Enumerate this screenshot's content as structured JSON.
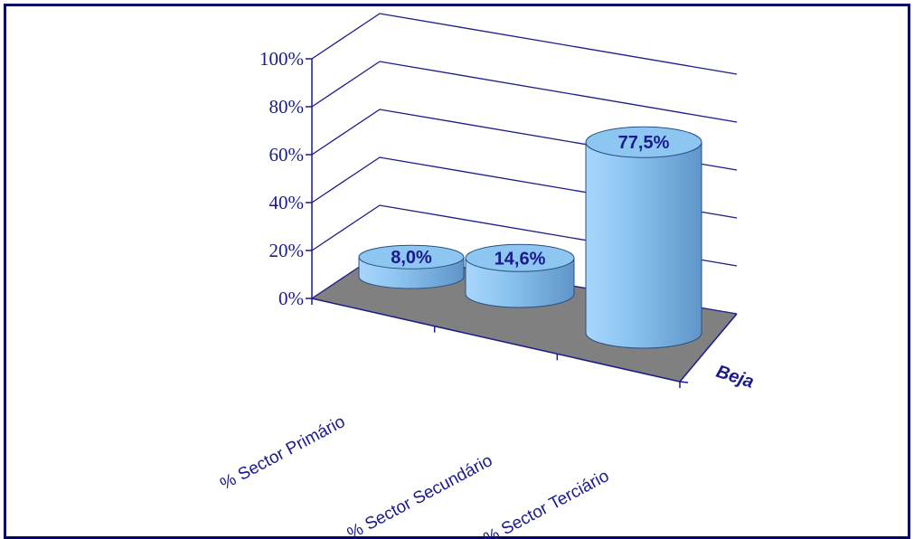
{
  "chart_data": {
    "type": "bar",
    "style": "3d-cylinder",
    "categories": [
      "% Sector Primário",
      "% Sector Secundário",
      "% Sector Terciário"
    ],
    "series": [
      {
        "name": "Beja",
        "values": [
          8.0,
          14.6,
          77.5
        ],
        "labels": [
          "8,0%",
          "14,6%",
          "77,5%"
        ]
      }
    ],
    "y_ticks": [
      "0%",
      "20%",
      "40%",
      "60%",
      "80%",
      "100%"
    ],
    "ylim": [
      0,
      100
    ],
    "grid": true,
    "colors": {
      "bar": "#8ec6f2",
      "bar_dark": "#5f95c9",
      "floor": "#808080",
      "axis": "#1a1a8c",
      "grid": "#1a1a8c",
      "border": "#000066"
    }
  }
}
